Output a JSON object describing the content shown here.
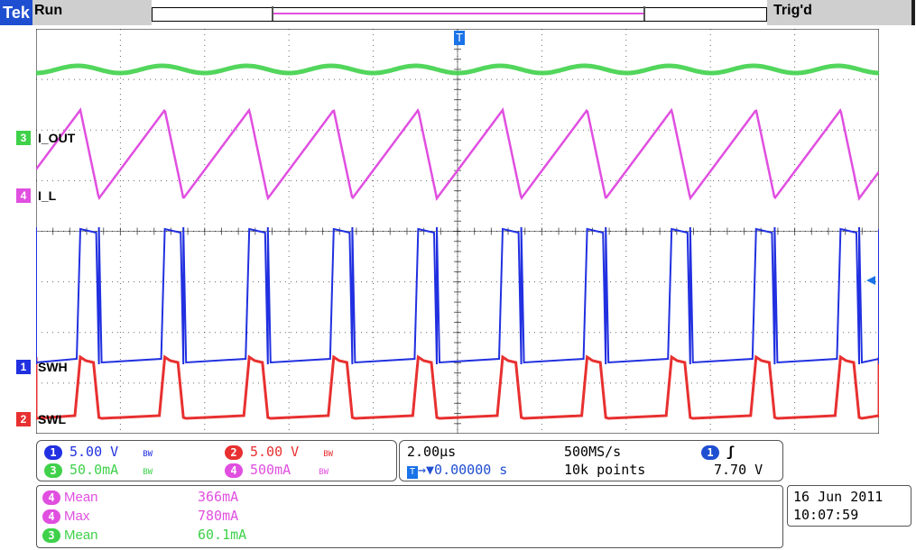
{
  "header": {
    "brand": "Tek",
    "state": "Run",
    "trigger_status": "Trig'd"
  },
  "channels": [
    {
      "id": "3",
      "label": "I_OUT",
      "color": "#3fd14a"
    },
    {
      "id": "4",
      "label": "I_L",
      "color": "#e04fe0"
    },
    {
      "id": "1",
      "label": "SWH",
      "color": "#2130e0"
    },
    {
      "id": "2",
      "label": "SWL",
      "color": "#e83030"
    }
  ],
  "vertical": {
    "ch1": {
      "num": "1",
      "scale": "5.00 V",
      "bw": "BW"
    },
    "ch2": {
      "num": "2",
      "scale": "5.00 V",
      "bw": "BW"
    },
    "ch3": {
      "num": "3",
      "scale": "50.0mA",
      "bw": "BW"
    },
    "ch4": {
      "num": "4",
      "scale": "500mA",
      "bw": "BW"
    }
  },
  "horizontal": {
    "timebase": "2.00µs",
    "sample_rate": "500MS/s",
    "position": "▼0.00000 s",
    "record_length": "10k points",
    "trig_source": "1",
    "trig_level": "7.70 V"
  },
  "measurements": [
    {
      "ch": "4",
      "name": "Mean",
      "value": "366mA"
    },
    {
      "ch": "4",
      "name": "Max",
      "value": "780mA"
    },
    {
      "ch": "3",
      "name": "Mean",
      "value": "60.1mA"
    }
  ],
  "datetime": {
    "date": "16 Jun 2011",
    "time": "10:07:59"
  },
  "colors": {
    "ch1": "#2130e0",
    "ch2": "#e83030",
    "ch3": "#3fd14a",
    "ch4": "#e04fe0",
    "grid": "#000000"
  }
}
